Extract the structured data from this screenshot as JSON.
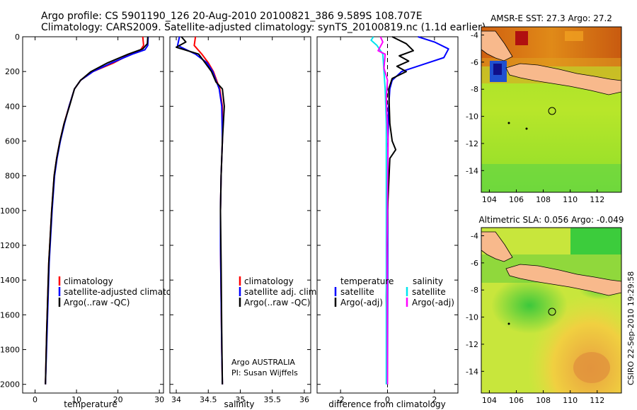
{
  "header": {
    "line1": "Argo profile: CS 5901190_126 20-Aug-2010 20100821_386 9.589S 108.707E",
    "line2": "Climatology: CARS2009. Satellite-adjusted climatology: synTS_20100819.nc (1.1d earlier)"
  },
  "footer": {
    "credit": "Argo AUSTRALIA",
    "pi": "PI: Susan Wijffels",
    "stamp": "CSIRO 22-Sep-2010 19:29:58"
  },
  "colors": {
    "climatology": "#ff0000",
    "satellite": "#0000ff",
    "argo": "#000000",
    "sal_satellite": "#00e5ee",
    "sal_argo": "#ff00ff",
    "land": "#f8b98c"
  },
  "legends": {
    "temperature": [
      "climatology",
      "satellite-adjusted climatology",
      "Argo(..raw -QC)"
    ],
    "salinity": [
      "climatology",
      "satellite adj. clim.",
      "Argo(..raw -QC)"
    ],
    "difference": {
      "temp_header": "temperature",
      "sal_header": "salinity",
      "temp_items": [
        "satellite",
        "Argo(-adj)"
      ],
      "sal_items": [
        "satellite",
        "Argo(-adj)"
      ]
    }
  },
  "chart_data": [
    {
      "type": "line",
      "id": "temperature",
      "xlabel": "temperature",
      "ylabel": "",
      "xlim": [
        -3,
        31
      ],
      "ylim": [
        2050,
        0
      ],
      "xticks": [
        0,
        10,
        20,
        30
      ],
      "yticks": [
        0,
        200,
        400,
        600,
        800,
        1000,
        1200,
        1400,
        1600,
        1800,
        2000
      ],
      "series": [
        {
          "name": "climatology",
          "color": "#ff0000",
          "x": [
            26,
            26.2,
            25.5,
            23,
            19,
            14,
            11,
            9.5,
            8.2,
            7,
            6,
            5.2,
            4.6,
            4,
            3.3,
            2.8,
            2.5
          ],
          "y": [
            0,
            50,
            75,
            100,
            150,
            200,
            250,
            300,
            400,
            500,
            600,
            700,
            800,
            1000,
            1300,
            1700,
            2000
          ]
        },
        {
          "name": "satellite-adjusted climatology",
          "color": "#0000ff",
          "x": [
            27.3,
            27.2,
            26.5,
            23.5,
            18.5,
            14,
            11,
            9.5,
            8.2,
            7.1,
            6.1,
            5.3,
            4.7,
            4.1,
            3.4,
            2.9,
            2.5
          ],
          "y": [
            0,
            50,
            75,
            100,
            150,
            200,
            250,
            300,
            400,
            500,
            600,
            700,
            800,
            1000,
            1300,
            1700,
            2000
          ]
        },
        {
          "name": "Argo(..raw -QC)",
          "color": "#000000",
          "x": [
            27.2,
            27.1,
            26,
            22.5,
            17.5,
            13.5,
            11,
            9.5,
            8.3,
            7,
            6,
            5.2,
            4.6,
            4,
            3.3,
            2.8,
            2.5
          ],
          "y": [
            0,
            40,
            70,
            100,
            150,
            200,
            250,
            300,
            400,
            500,
            600,
            700,
            800,
            1000,
            1300,
            1700,
            2000
          ]
        }
      ]
    },
    {
      "type": "line",
      "id": "salinity",
      "xlabel": "salinity",
      "ylabel": "",
      "xlim": [
        33.9,
        36.1
      ],
      "ylim": [
        2050,
        0
      ],
      "xticks": [
        34,
        34.5,
        35,
        35.5,
        36
      ],
      "series": [
        {
          "name": "climatology",
          "color": "#ff0000",
          "x": [
            34.3,
            34.28,
            34.4,
            34.5,
            34.58,
            34.63,
            34.68,
            34.72,
            34.72,
            34.7,
            34.69,
            34.69,
            34.7,
            34.71,
            34.72
          ],
          "y": [
            0,
            50,
            100,
            150,
            200,
            250,
            300,
            400,
            600,
            800,
            1000,
            1200,
            1500,
            1800,
            2000
          ]
        },
        {
          "name": "satellite adj. clim.",
          "color": "#0000ff",
          "x": [
            34.05,
            34.02,
            34.3,
            34.48,
            34.57,
            34.62,
            34.67,
            34.71,
            34.72,
            34.7,
            34.69,
            34.69,
            34.7,
            34.71,
            34.72
          ],
          "y": [
            0,
            50,
            100,
            150,
            200,
            250,
            300,
            400,
            600,
            800,
            1000,
            1200,
            1500,
            1800,
            2000
          ]
        },
        {
          "name": "Argo(..raw -QC)",
          "color": "#000000",
          "x": [
            34.08,
            34.15,
            34.0,
            34.35,
            34.45,
            34.55,
            34.62,
            34.72,
            34.75,
            34.72,
            34.7,
            34.69,
            34.7,
            34.71,
            34.72
          ],
          "y": [
            0,
            30,
            60,
            100,
            150,
            200,
            260,
            300,
            400,
            600,
            800,
            1000,
            1300,
            1700,
            2000
          ]
        }
      ]
    },
    {
      "type": "line",
      "id": "difference",
      "xlabel": "difference from climatology",
      "ylabel": "",
      "xlim": [
        -3,
        3
      ],
      "ylim": [
        2050,
        0
      ],
      "xticks": [
        -2,
        0,
        2
      ],
      "series": [
        {
          "name": "temperature satellite",
          "color": "#0000ff",
          "x": [
            1.3,
            2.0,
            2.6,
            2.4,
            1.5,
            0.6,
            0.2,
            0.1,
            0.05,
            0.02,
            0.01,
            0
          ],
          "y": [
            0,
            30,
            70,
            120,
            160,
            200,
            250,
            300,
            400,
            600,
            1000,
            2000
          ]
        },
        {
          "name": "temperature Argo(-adj)",
          "color": "#000000",
          "x": [
            0.2,
            0.8,
            1.1,
            0.5,
            0.9,
            0.4,
            0.8,
            0.2,
            0.05,
            0.1,
            0.2,
            0.35,
            0.1,
            0,
            -0.05,
            0
          ],
          "y": [
            0,
            40,
            80,
            110,
            140,
            170,
            200,
            240,
            300,
            500,
            600,
            650,
            700,
            1000,
            1500,
            2000
          ]
        },
        {
          "name": "salinity satellite",
          "color": "#00e5ee",
          "x": [
            -0.6,
            -0.7,
            -0.45,
            -0.2,
            -0.15,
            -0.1,
            -0.05,
            -0.05,
            -0.05,
            -0.05
          ],
          "y": [
            0,
            20,
            50,
            100,
            200,
            300,
            500,
            800,
            1400,
            2000
          ]
        },
        {
          "name": "salinity Argo(-adj)",
          "color": "#ff00ff",
          "x": [
            -0.3,
            -0.2,
            -0.4,
            -0.1,
            -0.15,
            0.0,
            -0.05,
            0.02,
            -0.02,
            0
          ],
          "y": [
            0,
            30,
            80,
            100,
            180,
            250,
            350,
            600,
            1200,
            2000
          ]
        }
      ]
    },
    {
      "type": "heatmap",
      "id": "sst-map",
      "title": "AMSR-E SST: 27.3 Argo: 27.2",
      "xlim": [
        103.4,
        113.8
      ],
      "ylim": [
        -15.6,
        -3.4
      ],
      "xticks": [
        104,
        106,
        108,
        110,
        112
      ],
      "yticks": [
        -4,
        -6,
        -8,
        -10,
        -12,
        -14
      ],
      "profile_position": {
        "lon": 108.707,
        "lat": -9.589
      }
    },
    {
      "type": "heatmap",
      "id": "sla-map",
      "title": "Altimetric SLA: 0.056 Argo: -0.049",
      "xlim": [
        103.4,
        113.8
      ],
      "ylim": [
        -15.6,
        -3.4
      ],
      "xticks": [
        104,
        106,
        108,
        110,
        112
      ],
      "yticks": [
        -4,
        -6,
        -8,
        -10,
        -12,
        -14
      ],
      "profile_position": {
        "lon": 108.707,
        "lat": -9.589
      }
    }
  ]
}
